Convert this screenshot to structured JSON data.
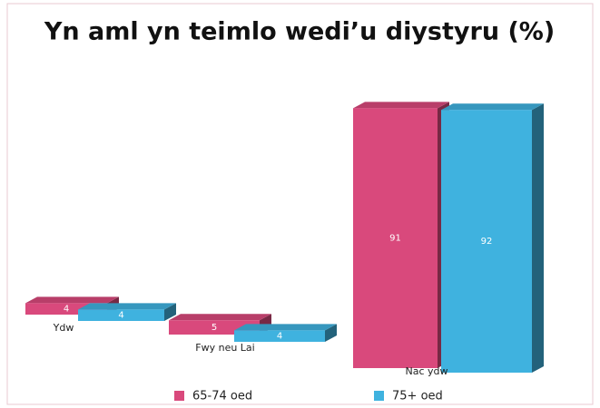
{
  "chart_data": {
    "type": "bar3d",
    "title": "Yn aml yn teimlo wedi’u diystyru (%)",
    "categories": [
      "Ydw",
      "Fwy neu Lai",
      "Nac ydw"
    ],
    "series": [
      {
        "name": "65-74 oed",
        "color": "#d9497c",
        "values": [
          4,
          5,
          91
        ]
      },
      {
        "name": "75+ oed",
        "color": "#3fb2df",
        "values": [
          4,
          4,
          92
        ]
      }
    ]
  }
}
